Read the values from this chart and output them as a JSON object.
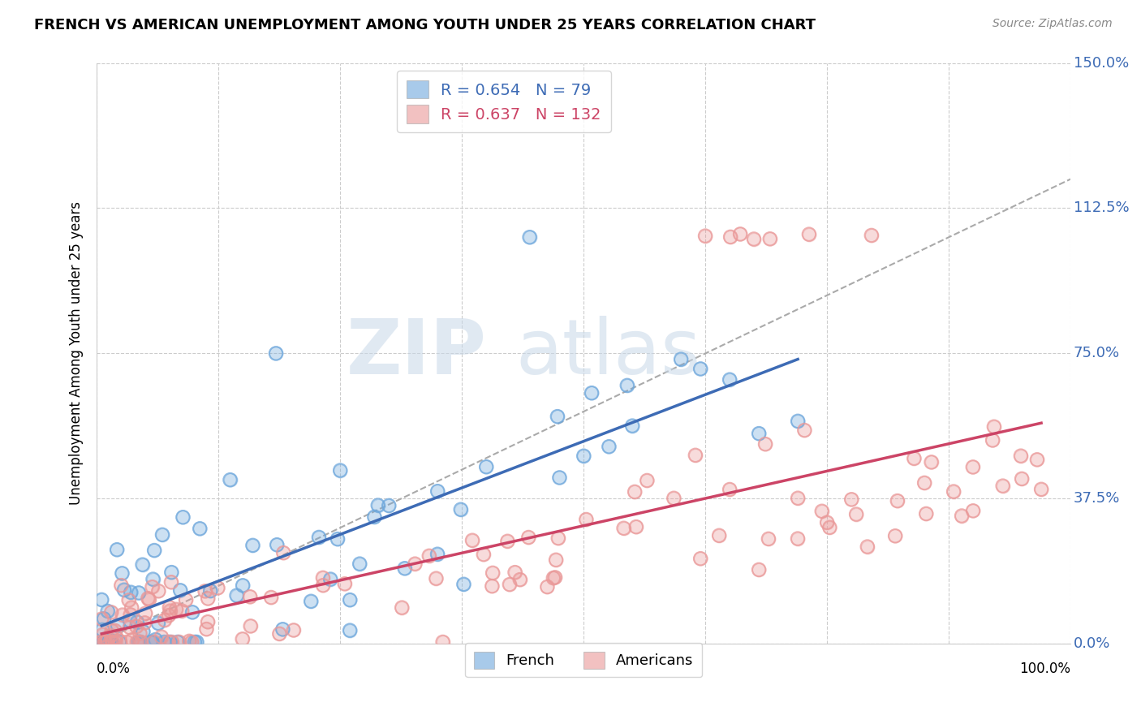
{
  "title": "FRENCH VS AMERICAN UNEMPLOYMENT AMONG YOUTH UNDER 25 YEARS CORRELATION CHART",
  "source": "Source: ZipAtlas.com",
  "ylabel": "Unemployment Among Youth under 25 years",
  "french_R": 0.654,
  "french_N": 79,
  "american_R": 0.637,
  "american_N": 132,
  "french_color": "#6fa8dc",
  "american_color": "#ea9999",
  "french_line_color": "#3d6bb5",
  "american_line_color": "#cc4466",
  "trend_line_color": "#aaaaaa",
  "background_color": "#ffffff",
  "grid_color": "#cccccc",
  "xlim": [
    0.0,
    1.0
  ],
  "ylim": [
    0.0,
    1.5
  ],
  "xticks": [
    0.0,
    0.125,
    0.25,
    0.375,
    0.5,
    0.625,
    0.75,
    0.875,
    1.0
  ],
  "ytick_labels": [
    "0.0%",
    "37.5%",
    "75.0%",
    "112.5%",
    "150.0%"
  ],
  "yticks": [
    0.0,
    0.375,
    0.75,
    1.125,
    1.5
  ]
}
